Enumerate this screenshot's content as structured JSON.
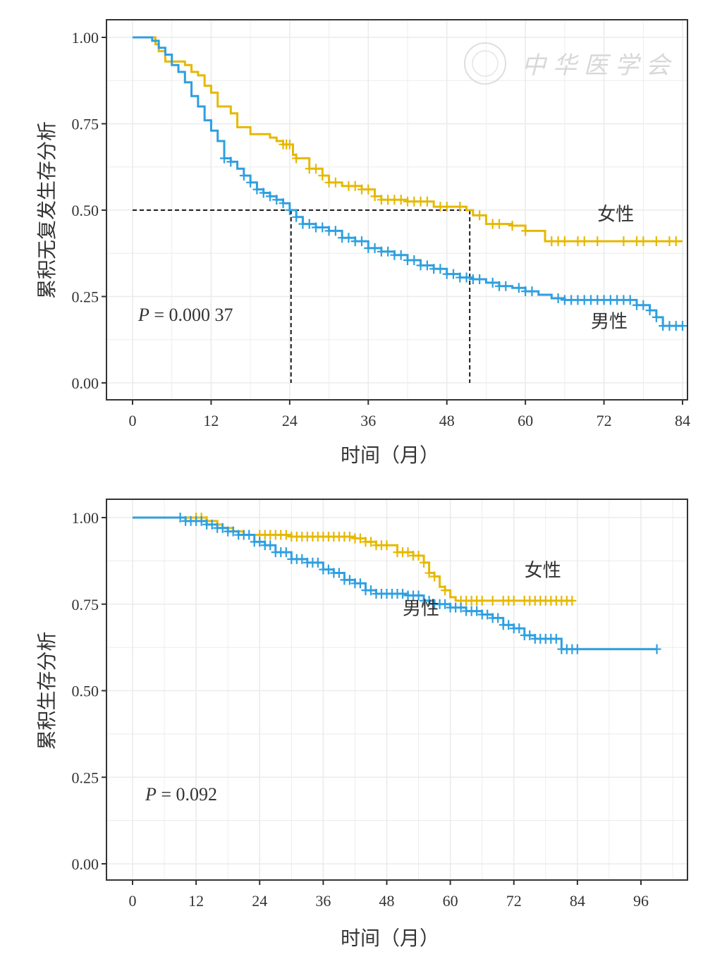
{
  "chart_data": [
    {
      "type": "line",
      "subtype": "kaplan-meier",
      "title": "",
      "xlabel": "时间（月）",
      "ylabel": "累积无复发生存分析",
      "xlim": [
        -4,
        84
      ],
      "ylim": [
        -0.05,
        1.05
      ],
      "xticks": [
        0,
        12,
        24,
        36,
        48,
        60,
        72,
        84
      ],
      "xtick_labels": [
        "0",
        "12",
        "24",
        "36",
        "48",
        "60",
        "72",
        "84"
      ],
      "yticks": [
        0,
        0.25,
        0.5,
        0.75,
        1.0
      ],
      "ytick_labels": [
        "0.00",
        "0.25",
        "0.50",
        "0.75",
        "1.00"
      ],
      "grid": true,
      "p_value_italic": "P",
      "p_value_text": " = 0.000 37",
      "watermark": "中华医学会",
      "median_lines": [
        {
          "y": 0.5,
          "x": 24.2
        },
        {
          "y": 0.5,
          "x": 51.5
        }
      ],
      "series": [
        {
          "name": "女性",
          "color": "#E6B800",
          "steps": [
            [
              0,
              1.0
            ],
            [
              2.5,
              1.0
            ],
            [
              3.5,
              0.98
            ],
            [
              4,
              0.96
            ],
            [
              5,
              0.93
            ],
            [
              8,
              0.92
            ],
            [
              9,
              0.9
            ],
            [
              10,
              0.89
            ],
            [
              11,
              0.86
            ],
            [
              12,
              0.84
            ],
            [
              13,
              0.8
            ],
            [
              15,
              0.78
            ],
            [
              16,
              0.74
            ],
            [
              18,
              0.72
            ],
            [
              21,
              0.71
            ],
            [
              22,
              0.7
            ],
            [
              23,
              0.69
            ],
            [
              24.5,
              0.66
            ],
            [
              25,
              0.65
            ],
            [
              27,
              0.62
            ],
            [
              29,
              0.6
            ],
            [
              30,
              0.58
            ],
            [
              32,
              0.57
            ],
            [
              35,
              0.56
            ],
            [
              37,
              0.54
            ],
            [
              38,
              0.53
            ],
            [
              42,
              0.525
            ],
            [
              46,
              0.51
            ],
            [
              51,
              0.5
            ],
            [
              52,
              0.485
            ],
            [
              54,
              0.46
            ],
            [
              58,
              0.455
            ],
            [
              60,
              0.44
            ],
            [
              63,
              0.41
            ],
            [
              84,
              0.41
            ]
          ],
          "censor_x": [
            23,
            23.5,
            24,
            25,
            27,
            28,
            29,
            30,
            31,
            33,
            34,
            35,
            36,
            37,
            38,
            39,
            40,
            41,
            42,
            43,
            44,
            45,
            47,
            48,
            50,
            53,
            55,
            56,
            58,
            60,
            64,
            65,
            66,
            68,
            69,
            71,
            75,
            77,
            78,
            80,
            82,
            83
          ]
        },
        {
          "name": "男性",
          "color": "#2E9FDF",
          "steps": [
            [
              0,
              1.0
            ],
            [
              2,
              1.0
            ],
            [
              3,
              0.99
            ],
            [
              4,
              0.97
            ],
            [
              5,
              0.95
            ],
            [
              6,
              0.92
            ],
            [
              7,
              0.9
            ],
            [
              8,
              0.87
            ],
            [
              9,
              0.83
            ],
            [
              10,
              0.8
            ],
            [
              11,
              0.76
            ],
            [
              12,
              0.73
            ],
            [
              13,
              0.7
            ],
            [
              14,
              0.65
            ],
            [
              15,
              0.64
            ],
            [
              16,
              0.62
            ],
            [
              17,
              0.6
            ],
            [
              18,
              0.58
            ],
            [
              19,
              0.56
            ],
            [
              20,
              0.55
            ],
            [
              21,
              0.54
            ],
            [
              22,
              0.53
            ],
            [
              23,
              0.52
            ],
            [
              24,
              0.5
            ],
            [
              25,
              0.48
            ],
            [
              26,
              0.46
            ],
            [
              28,
              0.45
            ],
            [
              30,
              0.44
            ],
            [
              32,
              0.42
            ],
            [
              34,
              0.41
            ],
            [
              36,
              0.39
            ],
            [
              38,
              0.38
            ],
            [
              40,
              0.37
            ],
            [
              42,
              0.355
            ],
            [
              44,
              0.34
            ],
            [
              46,
              0.33
            ],
            [
              48,
              0.315
            ],
            [
              50,
              0.305
            ],
            [
              52,
              0.3
            ],
            [
              54,
              0.29
            ],
            [
              56,
              0.28
            ],
            [
              58,
              0.275
            ],
            [
              60,
              0.265
            ],
            [
              62,
              0.255
            ],
            [
              64,
              0.245
            ],
            [
              66,
              0.24
            ],
            [
              75,
              0.24
            ],
            [
              77,
              0.225
            ],
            [
              79,
              0.21
            ],
            [
              80,
              0.19
            ],
            [
              81,
              0.165
            ],
            [
              84,
              0.165
            ]
          ],
          "censor_x": [
            14,
            15,
            17,
            18,
            19,
            20,
            21,
            22,
            23,
            24,
            25,
            26,
            27,
            28,
            29,
            30,
            31,
            32,
            33,
            34,
            35,
            36,
            37,
            38,
            39,
            40,
            41,
            42,
            43,
            44,
            45,
            46,
            47,
            48,
            49,
            50,
            51,
            52,
            53,
            55,
            56,
            57,
            59,
            60,
            61,
            65,
            66,
            67,
            68,
            69,
            70,
            71,
            72,
            73,
            74,
            75,
            76,
            77,
            78,
            79,
            80,
            81,
            82,
            83,
            84
          ]
        }
      ],
      "annotations": [
        {
          "text": "女性",
          "x": 71,
          "y": 0.47
        },
        {
          "text": "男性",
          "x": 70,
          "y": 0.16
        }
      ]
    },
    {
      "type": "line",
      "subtype": "kaplan-meier",
      "title": "",
      "xlabel": "时间（月）",
      "ylabel": "累积生存分析",
      "xlim": [
        -5,
        103
      ],
      "ylim": [
        -0.05,
        1.05
      ],
      "xticks": [
        0,
        12,
        24,
        36,
        48,
        60,
        72,
        84,
        96
      ],
      "xtick_labels": [
        "0",
        "12",
        "24",
        "36",
        "48",
        "60",
        "72",
        "84",
        "96"
      ],
      "yticks": [
        0,
        0.25,
        0.5,
        0.75,
        1.0
      ],
      "ytick_labels": [
        "0.00",
        "0.25",
        "0.50",
        "0.75",
        "1.00"
      ],
      "grid": true,
      "p_value_italic": "P",
      "p_value_text": " = 0.092",
      "series": [
        {
          "name": "女性",
          "color": "#E6B800",
          "steps": [
            [
              0,
              1.0
            ],
            [
              12,
              1.0
            ],
            [
              14,
              0.99
            ],
            [
              16,
              0.98
            ],
            [
              17,
              0.97
            ],
            [
              19,
              0.96
            ],
            [
              21,
              0.95
            ],
            [
              30,
              0.945
            ],
            [
              42,
              0.94
            ],
            [
              44,
              0.93
            ],
            [
              46,
              0.92
            ],
            [
              50,
              0.9
            ],
            [
              53,
              0.89
            ],
            [
              55,
              0.87
            ],
            [
              56,
              0.84
            ],
            [
              57,
              0.83
            ],
            [
              58,
              0.8
            ],
            [
              59,
              0.79
            ],
            [
              60,
              0.77
            ],
            [
              61,
              0.76
            ],
            [
              83,
              0.76
            ]
          ],
          "censor_x": [
            12,
            13,
            14,
            24,
            25,
            26,
            27,
            28,
            29,
            30,
            31,
            32,
            33,
            34,
            35,
            36,
            37,
            38,
            39,
            40,
            41,
            42,
            43,
            44,
            45,
            46,
            47,
            48,
            50,
            51,
            52,
            53,
            54,
            55,
            56,
            57,
            59,
            62,
            63,
            64,
            65,
            66,
            68,
            70,
            71,
            72,
            74,
            75,
            76,
            77,
            78,
            79,
            80,
            81,
            82,
            83
          ]
        },
        {
          "name": "男性",
          "color": "#2E9FDF",
          "steps": [
            [
              0,
              1.0
            ],
            [
              8,
              1.0
            ],
            [
              10,
              0.99
            ],
            [
              14,
              0.98
            ],
            [
              16,
              0.97
            ],
            [
              18,
              0.96
            ],
            [
              20,
              0.95
            ],
            [
              23,
              0.93
            ],
            [
              25,
              0.92
            ],
            [
              27,
              0.9
            ],
            [
              30,
              0.88
            ],
            [
              33,
              0.87
            ],
            [
              36,
              0.85
            ],
            [
              38,
              0.84
            ],
            [
              40,
              0.82
            ],
            [
              42,
              0.81
            ],
            [
              44,
              0.79
            ],
            [
              46,
              0.78
            ],
            [
              52,
              0.775
            ],
            [
              55,
              0.76
            ],
            [
              57,
              0.75
            ],
            [
              60,
              0.74
            ],
            [
              63,
              0.73
            ],
            [
              66,
              0.72
            ],
            [
              68,
              0.71
            ],
            [
              70,
              0.69
            ],
            [
              72,
              0.68
            ],
            [
              74,
              0.66
            ],
            [
              76,
              0.65
            ],
            [
              80,
              0.65
            ],
            [
              81,
              0.62
            ],
            [
              84,
              0.62
            ],
            [
              99,
              0.62
            ]
          ],
          "censor_x": [
            9,
            10,
            11,
            12,
            13,
            14,
            15,
            16,
            17,
            18,
            19,
            20,
            21,
            22,
            23,
            24,
            25,
            26,
            27,
            28,
            29,
            30,
            31,
            32,
            33,
            34,
            35,
            36,
            37,
            38,
            39,
            40,
            41,
            42,
            43,
            44,
            45,
            46,
            47,
            48,
            49,
            50,
            51,
            52,
            53,
            54,
            55,
            56,
            57,
            58,
            59,
            60,
            61,
            62,
            63,
            64,
            65,
            66,
            67,
            68,
            69,
            70,
            71,
            72,
            73,
            74,
            75,
            76,
            77,
            78,
            79,
            80,
            81,
            82,
            83,
            84,
            99
          ]
        }
      ],
      "annotations": [
        {
          "text": "女性",
          "x": 74,
          "y": 0.83
        },
        {
          "text": "男性",
          "x": 51,
          "y": 0.72
        }
      ]
    }
  ]
}
